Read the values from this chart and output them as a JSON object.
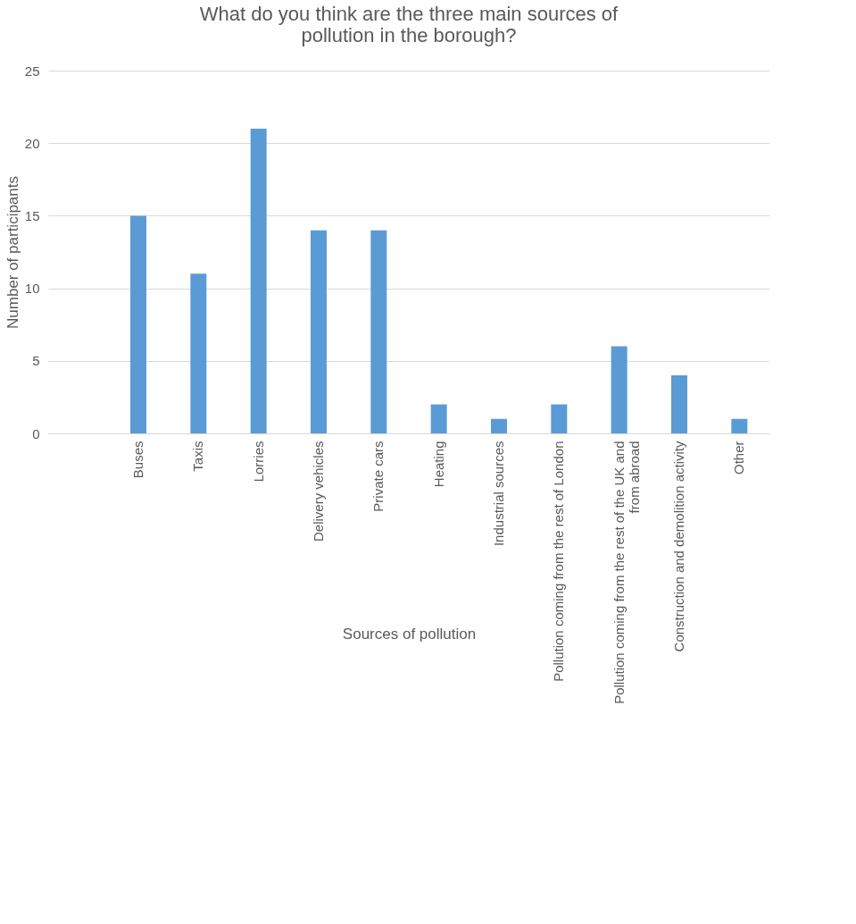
{
  "chart_data": {
    "type": "bar",
    "title": [
      "What do you think are the three main sources of",
      "pollution in the borough?"
    ],
    "categories": [
      null,
      "Buses",
      "Taxis",
      "Lorries",
      "Delivery vehicles",
      "Private cars",
      "Heating",
      "Industrial sources",
      "Pollution coming from the rest of London",
      "Pollution coming from the rest of the UK and from abroad",
      "Construction and demolition activity",
      "Other"
    ],
    "values": [
      null,
      15,
      11,
      21,
      14,
      14,
      2,
      1,
      2,
      6,
      4,
      1
    ],
    "color": "#5b9bd5",
    "xlabel": "Sources of pollution",
    "ylabel": "Number of participants",
    "ylim": [
      0,
      25
    ],
    "yticks": [
      0,
      5,
      10,
      15,
      20,
      25
    ],
    "grid": "y"
  }
}
